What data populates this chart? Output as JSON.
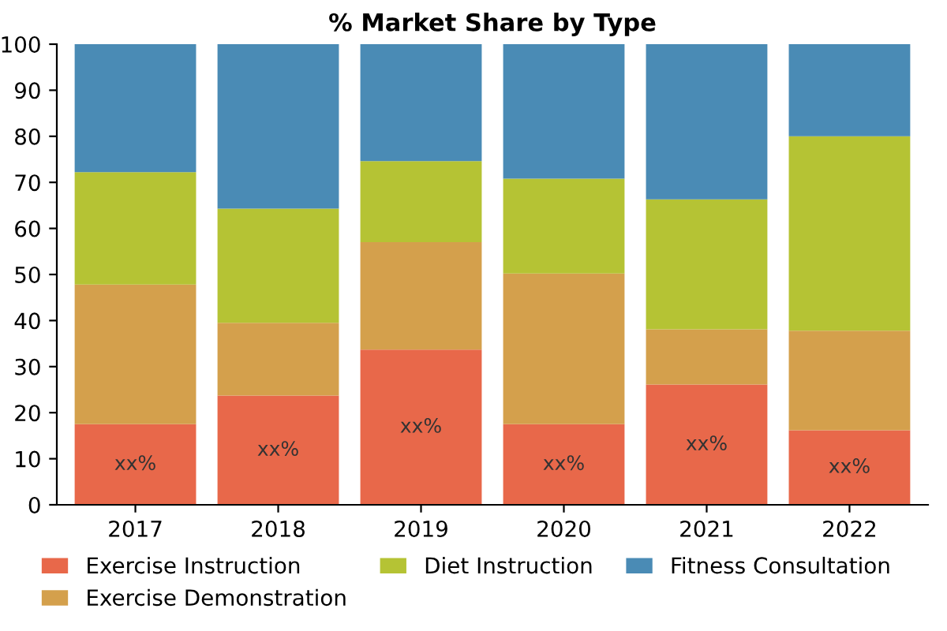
{
  "chart_data": {
    "type": "bar",
    "title": "% Market Share by Type",
    "categories": [
      "2017",
      "2018",
      "2019",
      "2020",
      "2021",
      "2022"
    ],
    "stacked": true,
    "ylim": [
      0,
      100
    ],
    "yticks": [
      0,
      10,
      20,
      30,
      40,
      50,
      60,
      70,
      80,
      90,
      100
    ],
    "legend": "bottom",
    "series": [
      {
        "name": "Exercise Instruction",
        "color": "#e8684a",
        "values": [
          17.5,
          23.7,
          33.7,
          17.5,
          26.1,
          16.2
        ],
        "value_labels": [
          "xx%",
          "xx%",
          "xx%",
          "xx%",
          "xx%",
          "xx%"
        ]
      },
      {
        "name": "Exercise Demonstration",
        "color": "#d4a04c",
        "values": [
          30.3,
          15.8,
          23.3,
          32.7,
          12,
          21.6
        ]
      },
      {
        "name": "Diet Instruction",
        "color": "#b5c334",
        "values": [
          24.4,
          24.8,
          17.6,
          20.6,
          28.2,
          42.2
        ]
      },
      {
        "name": "Fitness Consultation",
        "color": "#4a8bb5",
        "values": [
          27.8,
          35.7,
          25.4,
          29.2,
          33.7,
          20
        ]
      }
    ]
  }
}
